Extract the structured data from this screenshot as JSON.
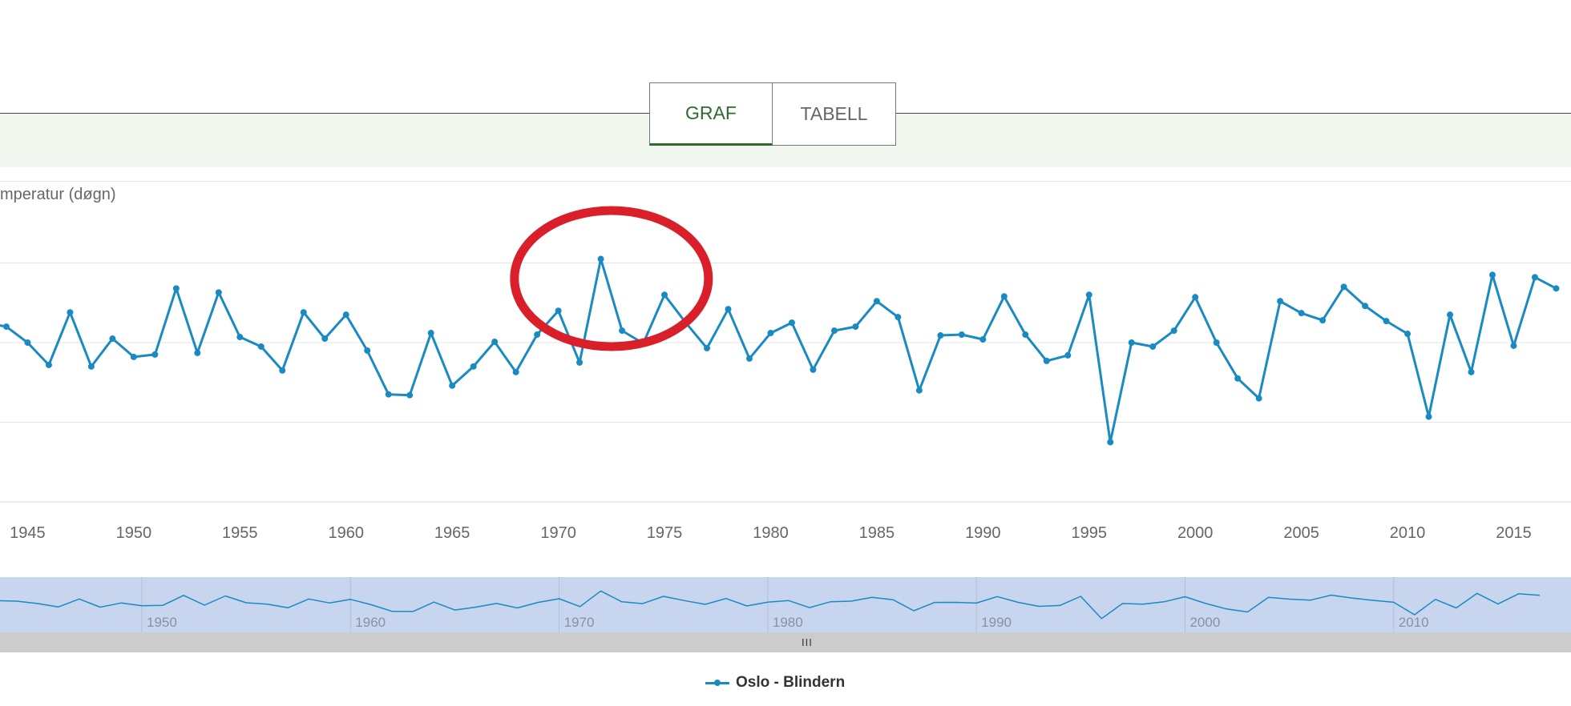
{
  "tabs": [
    {
      "label": "GRAF",
      "active": true
    },
    {
      "label": "TABELL",
      "active": false
    }
  ],
  "chart": {
    "ylabel_visible": "mperatur (døgn)",
    "legend": "Oslo - Blindern",
    "navigator_handle": "III",
    "colors": {
      "series": "#1a8ac2",
      "annotation": "#d9202a",
      "navigator": "#c8d5ee"
    }
  },
  "chart_data": {
    "type": "line",
    "ylabel": "mperatur (døgn)",
    "xlim": [
      1943.7,
      2017.7
    ],
    "ylim": [
      0,
      4
    ],
    "grid": true,
    "x_ticks": [
      1945,
      1950,
      1955,
      1960,
      1965,
      1970,
      1975,
      1980,
      1985,
      1990,
      1995,
      2000,
      2005,
      2010,
      2015
    ],
    "navigator_ticks": [
      1950,
      1960,
      1970,
      1980,
      1990,
      2000,
      2010
    ],
    "annotation": {
      "type": "circle",
      "center_year": 1972.5
    },
    "series": [
      {
        "name": "Oslo - Blindern",
        "x": [
          1943,
          1944,
          1945,
          1946,
          1947,
          1948,
          1949,
          1950,
          1951,
          1952,
          1953,
          1954,
          1955,
          1956,
          1957,
          1958,
          1959,
          1960,
          1961,
          1962,
          1963,
          1964,
          1965,
          1966,
          1967,
          1968,
          1969,
          1970,
          1971,
          1972,
          1973,
          1974,
          1975,
          1976,
          1977,
          1978,
          1979,
          1980,
          1981,
          1982,
          1983,
          1984,
          1985,
          1986,
          1987,
          1988,
          1989,
          1990,
          1991,
          1992,
          1993,
          1994,
          1995,
          1996,
          1997,
          1998,
          1999,
          2000,
          2001,
          2002,
          2003,
          2004,
          2005,
          2006,
          2007,
          2008,
          2009,
          2010,
          2011,
          2012,
          2013,
          2014,
          2015,
          2016,
          2017
        ],
        "values": [
          2.25,
          2.2,
          2.0,
          1.72,
          2.38,
          1.7,
          2.05,
          1.82,
          1.85,
          2.68,
          1.87,
          2.63,
          2.07,
          1.95,
          1.65,
          2.38,
          2.05,
          2.35,
          1.9,
          1.35,
          1.34,
          2.12,
          1.46,
          1.7,
          2.01,
          1.63,
          2.1,
          2.4,
          1.75,
          3.05,
          2.15,
          1.99,
          2.6,
          2.25,
          1.93,
          2.42,
          1.8,
          2.12,
          2.25,
          1.66,
          2.15,
          2.2,
          2.52,
          2.32,
          1.4,
          2.09,
          2.1,
          2.04,
          2.58,
          2.1,
          1.77,
          1.84,
          2.6,
          0.75,
          2.0,
          1.95,
          2.15,
          2.57,
          2.0,
          1.55,
          1.3,
          2.52,
          2.37,
          2.28,
          2.7,
          2.46,
          2.27,
          2.11,
          1.07,
          2.35,
          1.63,
          2.85,
          1.96,
          2.82,
          2.68
        ]
      }
    ]
  }
}
